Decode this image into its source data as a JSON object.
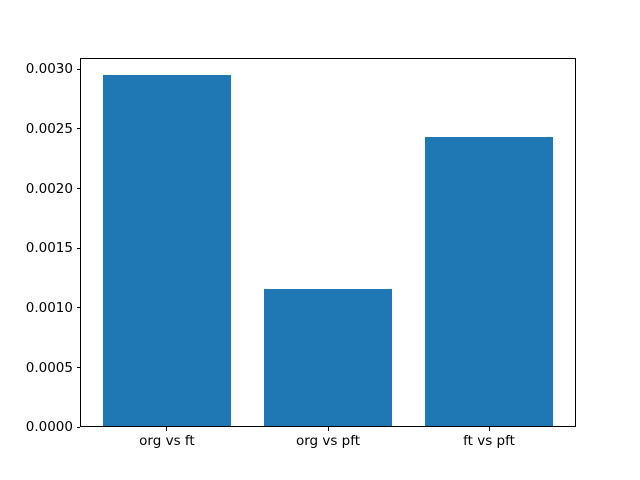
{
  "chart_data": {
    "type": "bar",
    "title": "",
    "xlabel": "",
    "ylabel": "",
    "categories": [
      "org vs ft",
      "org vs pft",
      "ft vs pft"
    ],
    "values": [
      0.00295,
      0.00116,
      0.00243
    ],
    "bar_color": "#1f77b4",
    "bar_width": 0.8,
    "xlim": [
      -0.54,
      2.54
    ],
    "ylim": [
      0,
      0.0030975
    ],
    "yticks": [
      0.0,
      0.0005,
      0.001,
      0.0015,
      0.002,
      0.0025,
      0.003
    ],
    "ytick_decimals": 4,
    "grid": false,
    "legend": "none",
    "spine_color": "#000000",
    "text_color": "#000000",
    "background_color": "#ffffff"
  }
}
